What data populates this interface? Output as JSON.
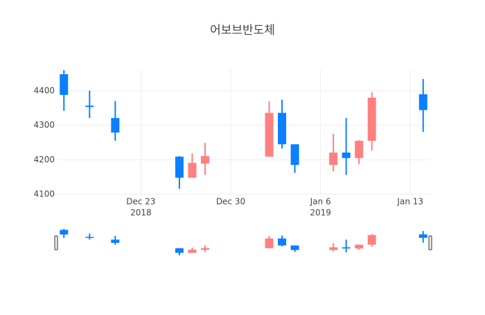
{
  "chart_data": {
    "type": "candlestick",
    "title": "어보브반도체",
    "x": [
      "2018-12-17",
      "2018-12-19",
      "2018-12-21",
      "2018-12-26",
      "2018-12-27",
      "2018-12-28",
      "2019-01-02",
      "2019-01-03",
      "2019-01-04",
      "2019-01-07",
      "2019-01-08",
      "2019-01-09",
      "2019-01-10",
      "2019-01-14"
    ],
    "open": [
      4448,
      4357,
      4321,
      4209,
      4148,
      4189,
      4209,
      4336,
      4245,
      4185,
      4221,
      4205,
      4255,
      4390
    ],
    "high": [
      4460,
      4400,
      4370,
      4211,
      4219,
      4249,
      4370,
      4374,
      4245,
      4275,
      4321,
      4257,
      4396,
      4434
    ],
    "low": [
      4342,
      4321,
      4255,
      4116,
      4148,
      4156,
      4209,
      4233,
      4162,
      4166,
      4156,
      4187,
      4227,
      4281
    ],
    "close": [
      4388,
      4353,
      4279,
      4148,
      4191,
      4211,
      4336,
      4245,
      4185,
      4221,
      4205,
      4255,
      4380,
      4344
    ],
    "increasing_color": "#ff8080",
    "decreasing_color": "#0a7fff",
    "xlim": [
      "2018-12-16 12:00",
      "2019-01-14 12:00"
    ],
    "xticks": [
      {
        "value": "2018-12-23",
        "label": "Dec 23",
        "year": "2018"
      },
      {
        "value": "2018-12-30",
        "label": "Dec 30"
      },
      {
        "value": "2019-01-06",
        "label": "Jan 6",
        "year": "2019"
      },
      {
        "value": "2019-01-13",
        "label": "Jan 13"
      }
    ],
    "ylim": [
      4096,
      4462
    ],
    "yticks": [
      4100,
      4200,
      4300,
      4400
    ],
    "grid": true,
    "rangeslider": true
  }
}
